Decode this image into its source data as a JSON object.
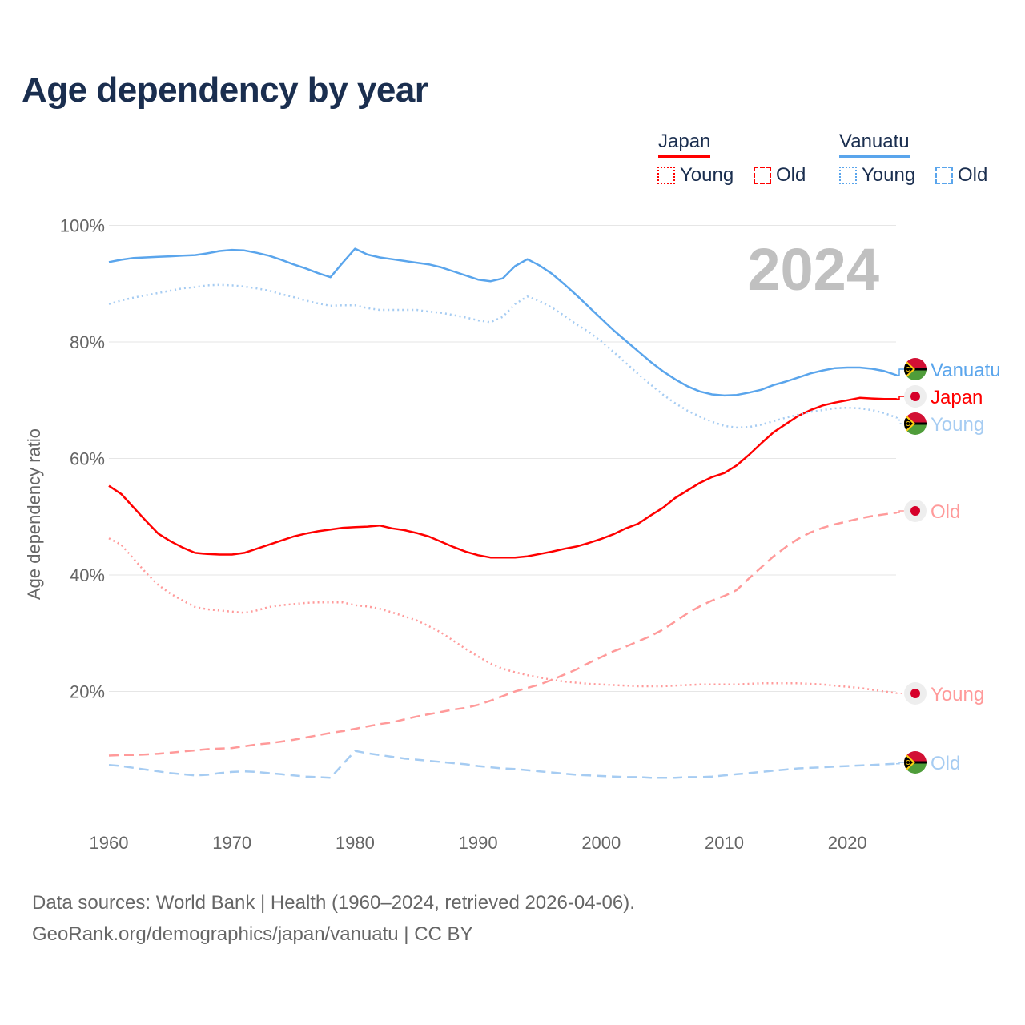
{
  "colors": {
    "japan": "#ff0000",
    "japan_light": "#ff9a9a",
    "vanuatu": "#5aa5ec",
    "vanuatu_light": "#a6ccf2",
    "title": "#1a2e4f"
  },
  "legend": {
    "japan": {
      "label": "Japan",
      "young": "Young",
      "old": "Old"
    },
    "vanuatu": {
      "label": "Vanuatu",
      "young": "Young",
      "old": "Old"
    }
  },
  "footer": {
    "line1": "Data sources: World Bank | Health (1960–2024, retrieved 2026-04-06).",
    "line2": "GeoRank.org/demographics/japan/vanuatu | CC BY"
  },
  "chart_data": {
    "type": "line",
    "title": "Age dependency by year",
    "year_label": "2024",
    "ylabel": "Age dependency ratio",
    "xlabel": "",
    "xlim": [
      1960,
      2024
    ],
    "ylim": [
      0,
      100
    ],
    "x_ticks": [
      "1960",
      "1970",
      "1980",
      "1990",
      "2000",
      "2010",
      "2020"
    ],
    "y_ticks": [
      "20%",
      "40%",
      "60%",
      "80%",
      "100%"
    ],
    "x_start": 1960,
    "series": [
      {
        "name": "Vanuatu",
        "label": "Vanuatu",
        "country": "vanuatu",
        "style": "solid",
        "values": [
          93.7,
          94.1,
          94.4,
          94.5,
          94.6,
          94.7,
          94.8,
          94.9,
          95.2,
          95.6,
          95.8,
          95.7,
          95.3,
          94.8,
          94.1,
          93.3,
          92.6,
          91.8,
          91.1,
          93.6,
          96.0,
          95.0,
          94.5,
          94.2,
          93.9,
          93.6,
          93.3,
          92.8,
          92.1,
          91.4,
          90.7,
          90.4,
          90.9,
          93.0,
          94.2,
          93.1,
          91.7,
          89.9,
          88.0,
          86.0,
          84.0,
          82.0,
          80.2,
          78.4,
          76.6,
          75.0,
          73.6,
          72.4,
          71.5,
          71.0,
          70.8,
          70.9,
          71.3,
          71.8,
          72.6,
          73.2,
          73.9,
          74.6,
          75.1,
          75.5,
          75.6,
          75.6,
          75.4,
          75.0,
          74.3
        ]
      },
      {
        "name": "Japan",
        "label": "Japan",
        "country": "japan",
        "style": "solid",
        "values": [
          55.3,
          53.9,
          51.6,
          49.3,
          47.1,
          45.8,
          44.7,
          43.8,
          43.6,
          43.5,
          43.5,
          43.8,
          44.5,
          45.2,
          45.9,
          46.6,
          47.1,
          47.5,
          47.8,
          48.1,
          48.2,
          48.3,
          48.5,
          48.0,
          47.7,
          47.2,
          46.6,
          45.7,
          44.8,
          44.0,
          43.4,
          43.0,
          43.0,
          43.0,
          43.2,
          43.6,
          44.0,
          44.5,
          44.9,
          45.5,
          46.2,
          47.0,
          48.0,
          48.8,
          50.2,
          51.5,
          53.2,
          54.5,
          55.8,
          56.8,
          57.5,
          58.8,
          60.6,
          62.6,
          64.5,
          65.9,
          67.3,
          68.3,
          69.1,
          69.6,
          70.0,
          70.4,
          70.3,
          70.2,
          70.2
        ]
      },
      {
        "name": "Vanuatu Young",
        "label": "Young",
        "country": "vanuatu",
        "style": "dotted",
        "values": [
          86.5,
          87.1,
          87.6,
          88.0,
          88.4,
          88.8,
          89.2,
          89.4,
          89.7,
          89.8,
          89.7,
          89.5,
          89.2,
          88.8,
          88.2,
          87.7,
          87.1,
          86.6,
          86.2,
          86.3,
          86.3,
          85.8,
          85.5,
          85.5,
          85.5,
          85.5,
          85.2,
          85.0,
          84.6,
          84.2,
          83.7,
          83.4,
          84.3,
          86.5,
          87.8,
          87.0,
          85.9,
          84.5,
          83.0,
          81.7,
          80.1,
          78.3,
          76.4,
          74.5,
          72.7,
          71.0,
          69.5,
          68.2,
          67.2,
          66.3,
          65.6,
          65.3,
          65.4,
          65.8,
          66.4,
          67.0,
          67.5,
          68.0,
          68.3,
          68.6,
          68.7,
          68.6,
          68.3,
          67.8,
          67.0
        ]
      },
      {
        "name": "Japan Old",
        "label": "Old",
        "country": "japan",
        "style": "dashed",
        "values": [
          9.0,
          9.1,
          9.1,
          9.2,
          9.3,
          9.5,
          9.7,
          9.9,
          10.1,
          10.2,
          10.3,
          10.6,
          10.9,
          11.1,
          11.4,
          11.7,
          12.1,
          12.5,
          12.9,
          13.2,
          13.6,
          14.0,
          14.4,
          14.7,
          15.2,
          15.7,
          16.1,
          16.5,
          16.9,
          17.2,
          17.7,
          18.4,
          19.2,
          20.0,
          20.6,
          21.2,
          22.0,
          22.9,
          23.8,
          24.9,
          25.9,
          26.9,
          27.7,
          28.6,
          29.5,
          30.6,
          32.0,
          33.4,
          34.6,
          35.6,
          36.4,
          37.4,
          39.4,
          41.3,
          43.2,
          44.8,
          46.2,
          47.3,
          48.1,
          48.7,
          49.2,
          49.7,
          50.1,
          50.4,
          50.7
        ]
      },
      {
        "name": "Japan Young",
        "label": "Young",
        "country": "japan",
        "style": "dotted",
        "values": [
          46.3,
          45.2,
          42.8,
          40.4,
          38.3,
          36.8,
          35.6,
          34.5,
          34.1,
          33.9,
          33.7,
          33.5,
          33.9,
          34.5,
          34.8,
          35.0,
          35.2,
          35.3,
          35.3,
          35.3,
          34.8,
          34.6,
          34.2,
          33.6,
          32.9,
          32.2,
          31.2,
          30.1,
          28.7,
          27.3,
          26.0,
          24.8,
          23.9,
          23.3,
          22.8,
          22.4,
          22.0,
          21.7,
          21.5,
          21.3,
          21.2,
          21.1,
          21.0,
          20.9,
          20.9,
          20.9,
          21.0,
          21.1,
          21.2,
          21.2,
          21.2,
          21.2,
          21.3,
          21.4,
          21.4,
          21.4,
          21.4,
          21.3,
          21.2,
          21.0,
          20.8,
          20.6,
          20.3,
          20.0,
          19.7
        ]
      },
      {
        "name": "Vanuatu Old",
        "label": "Old",
        "country": "vanuatu",
        "style": "dashed",
        "values": [
          7.4,
          7.2,
          6.9,
          6.6,
          6.3,
          6.0,
          5.8,
          5.6,
          5.7,
          6.0,
          6.2,
          6.3,
          6.2,
          6.0,
          5.8,
          5.6,
          5.4,
          5.3,
          5.2,
          7.5,
          9.8,
          9.4,
          9.1,
          8.8,
          8.5,
          8.3,
          8.1,
          7.9,
          7.7,
          7.5,
          7.2,
          7.0,
          6.8,
          6.7,
          6.5,
          6.3,
          6.1,
          5.9,
          5.7,
          5.6,
          5.5,
          5.4,
          5.3,
          5.3,
          5.2,
          5.2,
          5.2,
          5.3,
          5.3,
          5.4,
          5.6,
          5.8,
          6.0,
          6.2,
          6.4,
          6.6,
          6.8,
          6.9,
          7.0,
          7.1,
          7.2,
          7.3,
          7.4,
          7.5,
          7.6
        ]
      }
    ]
  }
}
